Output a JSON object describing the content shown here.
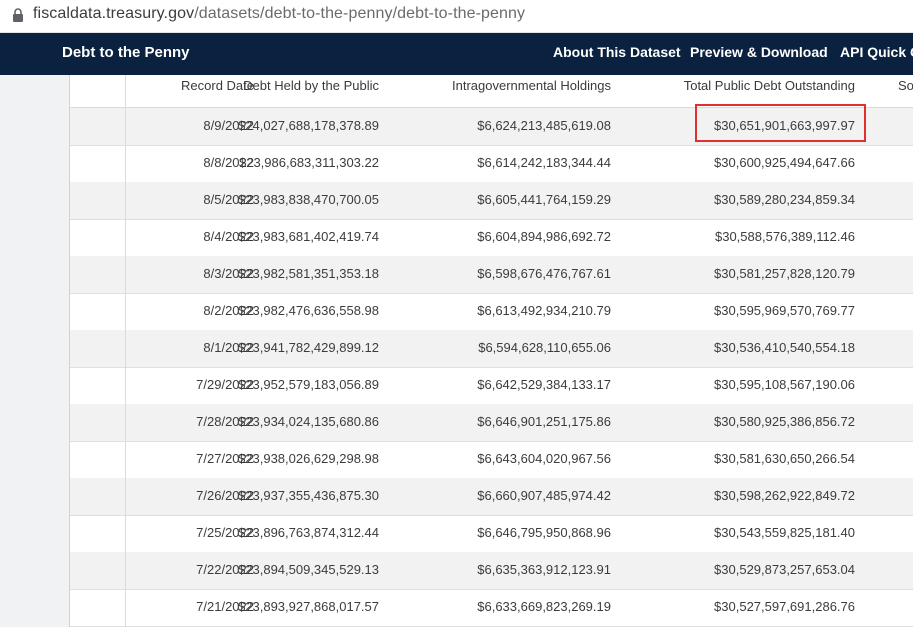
{
  "browser": {
    "url_host": "fiscaldata.treasury.gov",
    "url_path": "/datasets/debt-to-the-penny/debt-to-the-penny"
  },
  "site": {
    "title": "Debt to the Penny",
    "nav": [
      "About This Dataset",
      "Preview & Download",
      "API Quick Gu"
    ]
  },
  "table": {
    "columns": [
      "Record Date",
      "Debt Held by the Public",
      "Intragovernmental Holdings",
      "Total Public Debt Outstanding",
      "So"
    ],
    "rows": [
      [
        "8/9/2022",
        "$24,027,688,178,378.89",
        "$6,624,213,485,619.08",
        "$30,651,901,663,997.97"
      ],
      [
        "8/8/2022",
        "$23,986,683,311,303.22",
        "$6,614,242,183,344.44",
        "$30,600,925,494,647.66"
      ],
      [
        "8/5/2022",
        "$23,983,838,470,700.05",
        "$6,605,441,764,159.29",
        "$30,589,280,234,859.34"
      ],
      [
        "8/4/2022",
        "$23,983,681,402,419.74",
        "$6,604,894,986,692.72",
        "$30,588,576,389,112.46"
      ],
      [
        "8/3/2022",
        "$23,982,581,351,353.18",
        "$6,598,676,476,767.61",
        "$30,581,257,828,120.79"
      ],
      [
        "8/2/2022",
        "$23,982,476,636,558.98",
        "$6,613,492,934,210.79",
        "$30,595,969,570,769.77"
      ],
      [
        "8/1/2022",
        "$23,941,782,429,899.12",
        "$6,594,628,110,655.06",
        "$30,536,410,540,554.18"
      ],
      [
        "7/29/2022",
        "$23,952,579,183,056.89",
        "$6,642,529,384,133.17",
        "$30,595,108,567,190.06"
      ],
      [
        "7/28/2022",
        "$23,934,024,135,680.86",
        "$6,646,901,251,175.86",
        "$30,580,925,386,856.72"
      ],
      [
        "7/27/2022",
        "$23,938,026,629,298.98",
        "$6,643,604,020,967.56",
        "$30,581,630,650,266.54"
      ],
      [
        "7/26/2022",
        "$23,937,355,436,875.30",
        "$6,660,907,485,974.42",
        "$30,598,262,922,849.72"
      ],
      [
        "7/25/2022",
        "$23,896,763,874,312.44",
        "$6,646,795,950,868.96",
        "$30,543,559,825,181.40"
      ],
      [
        "7/22/2022",
        "$23,894,509,345,529.13",
        "$6,635,363,912,123.91",
        "$30,529,873,257,653.04"
      ],
      [
        "7/21/2022",
        "$23,893,927,868,017.57",
        "$6,633,669,823,269.19",
        "$30,527,597,691,286.76"
      ]
    ]
  },
  "colors": {
    "nav_background": "#0a2240",
    "highlight_border": "#e0302b",
    "row_alternate": "#f2f2f2"
  }
}
